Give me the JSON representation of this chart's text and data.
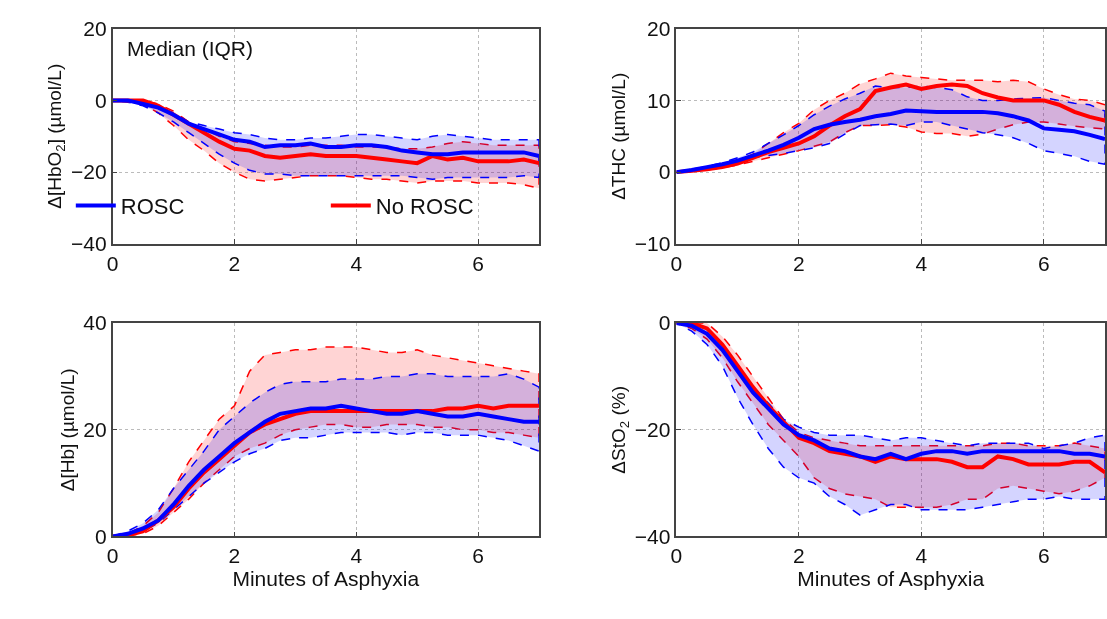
{
  "chart_data": [
    {
      "type": "line",
      "ylabel": "Δ[HbO$_{2}$] (µmol/L)",
      "xlim": [
        0,
        7
      ],
      "xticks": [
        0,
        2,
        4,
        6
      ],
      "ylim": [
        -40,
        20
      ],
      "yticks": [
        -40,
        -20,
        0,
        20
      ],
      "grid": true,
      "legend": "bottom",
      "annotations": [
        "Median (IQR)"
      ],
      "x": [
        0,
        0.25,
        0.5,
        0.75,
        1,
        1.25,
        1.5,
        1.75,
        2,
        2.25,
        2.5,
        2.75,
        3,
        3.25,
        3.5,
        3.75,
        4,
        4.25,
        4.5,
        4.75,
        5,
        5.25,
        5.5,
        5.75,
        6,
        6.25,
        6.5,
        6.75,
        7
      ],
      "series": [
        {
          "name": "No ROSC",
          "color": "#ff0000",
          "values": [
            0,
            0,
            0,
            -1.5,
            -4,
            -6.5,
            -9,
            -11.5,
            -13.5,
            -14,
            -15.5,
            -16,
            -15.5,
            -15,
            -15.5,
            -15.5,
            -15.5,
            -16,
            -16.5,
            -17,
            -17.5,
            -15.5,
            -16.5,
            -16,
            -17,
            -17,
            -17,
            -16.5,
            -17.5
          ],
          "upper": [
            0,
            0,
            0,
            -1,
            -3,
            -6,
            -8,
            -10,
            -11.5,
            -12,
            -12.5,
            -13,
            -13,
            -12.5,
            -12.5,
            -12.5,
            -13,
            -13,
            -13,
            -13.5,
            -13.5,
            -13,
            -12,
            -11.5,
            -12,
            -12.5,
            -12.5,
            -12.5,
            -12.5
          ],
          "lower": [
            0,
            0,
            -1,
            -3.5,
            -7,
            -11,
            -14,
            -17.5,
            -20,
            -22,
            -22.5,
            -22,
            -21.5,
            -21,
            -21,
            -21,
            -21.5,
            -22,
            -22,
            -22.5,
            -23,
            -22.5,
            -22.5,
            -22.5,
            -23,
            -23,
            -23,
            -23.5,
            -24.5
          ]
        },
        {
          "name": "ROSC",
          "color": "#0000ff",
          "values": [
            0,
            0,
            -1,
            -2,
            -4,
            -6.5,
            -8,
            -9.5,
            -11,
            -11.5,
            -13,
            -12.5,
            -12.5,
            -12,
            -13,
            -13,
            -12.5,
            -12.5,
            -13,
            -14,
            -14.5,
            -15,
            -15,
            -14.5,
            -14.5,
            -14.5,
            -14.5,
            -14.5,
            -15.5
          ],
          "upper": [
            0,
            0,
            -0.5,
            -1.5,
            -3.5,
            -6,
            -7,
            -8,
            -9,
            -9.5,
            -10.5,
            -11,
            -11,
            -10.5,
            -10.5,
            -10,
            -9.5,
            -9.5,
            -10,
            -10.5,
            -11,
            -10,
            -9.5,
            -10,
            -10.5,
            -11,
            -11,
            -11,
            -11
          ],
          "lower": [
            0,
            -0.5,
            -1.5,
            -3.5,
            -6,
            -9,
            -12,
            -15,
            -17.5,
            -19.5,
            -20.5,
            -20.5,
            -21,
            -21,
            -21,
            -21,
            -21,
            -21,
            -21,
            -21,
            -21.5,
            -22,
            -21.5,
            -21.5,
            -21.5,
            -21.5,
            -21.5,
            -21,
            -21.5
          ]
        }
      ]
    },
    {
      "type": "line",
      "ylabel": "ΔTHC (µmol/L)",
      "xlim": [
        0,
        7
      ],
      "xticks": [
        0,
        2,
        4,
        6
      ],
      "ylim": [
        -10,
        20
      ],
      "yticks": [
        -10,
        0,
        10,
        20
      ],
      "grid": true,
      "x": [
        0,
        0.25,
        0.5,
        0.75,
        1,
        1.25,
        1.5,
        1.75,
        2,
        2.25,
        2.5,
        2.75,
        3,
        3.25,
        3.5,
        3.75,
        4,
        4.25,
        4.5,
        4.75,
        5,
        5.25,
        5.5,
        5.75,
        6,
        6.25,
        6.5,
        6.75,
        7
      ],
      "series": [
        {
          "color": "#ff0000",
          "values": [
            0,
            0.2,
            0.4,
            0.7,
            1.2,
            2,
            2.8,
            3.4,
            4,
            5,
            6.5,
            7.8,
            8.8,
            11.3,
            11.8,
            12.2,
            11.6,
            12,
            12.2,
            12,
            11,
            10.4,
            10,
            10,
            10,
            9.4,
            8.4,
            7.7,
            7.2
          ],
          "upper": [
            0,
            0.3,
            0.6,
            1,
            1.6,
            2.5,
            4,
            5.5,
            6.8,
            8.7,
            10,
            11,
            12.3,
            13,
            13.8,
            13.4,
            13.2,
            13,
            12.8,
            12.8,
            12.8,
            12.6,
            12.8,
            12.6,
            11.6,
            10.8,
            10.2,
            10,
            9.4
          ],
          "lower": [
            0,
            0.1,
            0.3,
            0.6,
            1,
            1.5,
            2,
            2.5,
            3,
            3.6,
            4.2,
            5.5,
            6.5,
            6.5,
            6.6,
            6.3,
            5.6,
            5.4,
            5.4,
            5,
            5.3,
            6,
            6.6,
            7,
            7,
            6.7,
            6.4,
            6.2,
            6
          ]
        },
        {
          "color": "#0000ff",
          "values": [
            0,
            0.3,
            0.7,
            1.1,
            1.6,
            2.3,
            3,
            3.8,
            4.8,
            6,
            6.6,
            7,
            7.3,
            7.8,
            8.1,
            8.6,
            8.5,
            8.4,
            8.4,
            8.4,
            8.4,
            8.2,
            7.8,
            7.2,
            6.1,
            5.9,
            5.7,
            5.2,
            4.6
          ],
          "upper": [
            0,
            0.4,
            0.8,
            1.3,
            2,
            2.8,
            4,
            5.2,
            6.5,
            8,
            9.2,
            10.2,
            11,
            12,
            11.8,
            11.8,
            12,
            11.8,
            11.5,
            10.5,
            10,
            10,
            10.2,
            10.3,
            10.4,
            10,
            9.6,
            9.4,
            8.5
          ],
          "lower": [
            0,
            0.2,
            0.5,
            1,
            1.5,
            2,
            2.3,
            2.6,
            3,
            3.4,
            4,
            5.3,
            6.5,
            6.6,
            6.7,
            6.5,
            7,
            7,
            6.5,
            6,
            5.5,
            5.2,
            4.8,
            4,
            3,
            2.6,
            2.2,
            1.5,
            1.1
          ]
        }
      ]
    },
    {
      "type": "line",
      "ylabel": "Δ[Hb] (µmol/L)",
      "xlabel": "Minutes of Asphyxia",
      "xlim": [
        0,
        7
      ],
      "xticks": [
        0,
        2,
        4,
        6
      ],
      "ylim": [
        0,
        40
      ],
      "yticks": [
        0,
        20,
        40
      ],
      "grid": true,
      "x": [
        0,
        0.25,
        0.5,
        0.75,
        1,
        1.25,
        1.5,
        1.75,
        2,
        2.25,
        2.5,
        2.75,
        3,
        3.25,
        3.5,
        3.75,
        4,
        4.25,
        4.5,
        4.75,
        5,
        5.25,
        5.5,
        5.75,
        6,
        6.25,
        6.5,
        6.75,
        7
      ],
      "series": [
        {
          "color": "#ff0000",
          "values": [
            0,
            0.2,
            1,
            3,
            5.5,
            9,
            12,
            14.5,
            17,
            19.5,
            21,
            22,
            23,
            23.5,
            23.5,
            23.5,
            23.5,
            23.5,
            23.5,
            23.5,
            23.5,
            23.5,
            24,
            24,
            24.5,
            24,
            24.5,
            24.5,
            24.5
          ],
          "upper": [
            0,
            0.5,
            2,
            4.5,
            9,
            14,
            18,
            22,
            24.5,
            31,
            34,
            34.5,
            35,
            35,
            35.5,
            35.5,
            35.5,
            35,
            34.5,
            34.5,
            35,
            34,
            33.5,
            33,
            32.5,
            32,
            31.5,
            31,
            30.5
          ],
          "lower": [
            0,
            0.2,
            0.5,
            2,
            4.5,
            7,
            10,
            12.5,
            15,
            16.5,
            17.5,
            19,
            20,
            20.5,
            21,
            21,
            20.5,
            20.5,
            21,
            21,
            21,
            20.5,
            20.5,
            20,
            20,
            19.5,
            19.5,
            19,
            18.5
          ]
        },
        {
          "color": "#0000ff",
          "values": [
            0,
            0.5,
            1.5,
            3,
            6,
            9.5,
            12.5,
            15,
            17.5,
            19.5,
            21.5,
            23,
            23.5,
            24,
            24,
            24.5,
            24,
            23.5,
            23,
            23,
            23.5,
            23,
            22.5,
            22.5,
            23,
            22.5,
            22,
            21.5,
            21.5
          ],
          "upper": [
            0,
            1,
            2.5,
            5,
            9,
            12.5,
            16,
            20,
            22.5,
            25,
            27,
            28.5,
            29,
            29,
            29,
            29.5,
            29.5,
            29.5,
            30,
            30,
            30.5,
            30.5,
            30,
            30,
            30,
            30,
            30.5,
            29.5,
            28
          ],
          "lower": [
            0,
            0.3,
            1,
            2.5,
            5,
            7.5,
            10,
            12,
            14,
            15.5,
            16.5,
            18,
            18.5,
            18.5,
            19,
            19.5,
            19.5,
            19.5,
            19.5,
            19,
            19.5,
            19.5,
            19,
            19,
            19,
            18.5,
            18,
            17,
            16
          ]
        }
      ]
    },
    {
      "type": "line",
      "ylabel": "ΔStO$_{2}$ (%)",
      "xlabel": "Minutes of Asphyxia",
      "xlim": [
        0,
        7
      ],
      "xticks": [
        0,
        2,
        4,
        6
      ],
      "ylim": [
        -40,
        0
      ],
      "yticks": [
        -40,
        -20,
        0
      ],
      "grid": true,
      "x": [
        0,
        0.25,
        0.5,
        0.75,
        1,
        1.25,
        1.5,
        1.75,
        2,
        2.25,
        2.5,
        2.75,
        3,
        3.25,
        3.5,
        3.75,
        4,
        4.25,
        4.5,
        4.75,
        5,
        5.25,
        5.5,
        5.75,
        6,
        6.25,
        6.5,
        6.75,
        7
      ],
      "series": [
        {
          "color": "#ff0000",
          "values": [
            0,
            0,
            -1,
            -4,
            -8,
            -12,
            -15.5,
            -18.5,
            -21.5,
            -22.5,
            -24,
            -24.5,
            -25,
            -26,
            -25,
            -25.5,
            -25.5,
            -25.5,
            -26,
            -27,
            -27,
            -25,
            -25.5,
            -26.5,
            -26.5,
            -26.5,
            -26,
            -26,
            -28
          ],
          "upper": [
            0,
            0,
            0,
            -2.5,
            -6,
            -10,
            -14,
            -18,
            -20.5,
            -21.5,
            -22,
            -22.5,
            -23,
            -23,
            -23,
            -23,
            -23,
            -23,
            -23,
            -23,
            -23,
            -22.5,
            -22.5,
            -23,
            -23,
            -23,
            -22.5,
            -23,
            -23.5
          ],
          "lower": [
            0,
            -1,
            -3,
            -6.5,
            -11,
            -15,
            -19,
            -22,
            -25,
            -29,
            -31,
            -32,
            -32.5,
            -33,
            -34.5,
            -34.5,
            -34.5,
            -34.5,
            -34,
            -33,
            -33,
            -31,
            -30.5,
            -31,
            -31.5,
            -32,
            -31.5,
            -30.5,
            -29
          ]
        },
        {
          "color": "#0000ff",
          "values": [
            0,
            -0.5,
            -2,
            -5,
            -9,
            -13,
            -16,
            -19,
            -21,
            -22,
            -23.5,
            -24,
            -25,
            -25.5,
            -24.5,
            -25.5,
            -24.5,
            -24,
            -24,
            -24.5,
            -24,
            -24,
            -24,
            -24,
            -24,
            -24,
            -24.5,
            -24.5,
            -25
          ],
          "upper": [
            0,
            0,
            -1,
            -4,
            -8,
            -12,
            -15,
            -18,
            -19.5,
            -20.5,
            -21,
            -21,
            -21,
            -21.5,
            -22,
            -21.5,
            -21.5,
            -22,
            -22.5,
            -23,
            -22.5,
            -22.5,
            -22.5,
            -22.5,
            -23.5,
            -23,
            -22.5,
            -21.5,
            -21
          ],
          "lower": [
            0,
            -1.5,
            -4,
            -8,
            -14,
            -19,
            -23.5,
            -27,
            -29,
            -30,
            -32.5,
            -34,
            -36,
            -35,
            -34,
            -34,
            -35,
            -35,
            -35,
            -35,
            -34.5,
            -34,
            -33.5,
            -33,
            -33,
            -32.5,
            -33,
            -33,
            -33
          ]
        }
      ]
    }
  ]
}
